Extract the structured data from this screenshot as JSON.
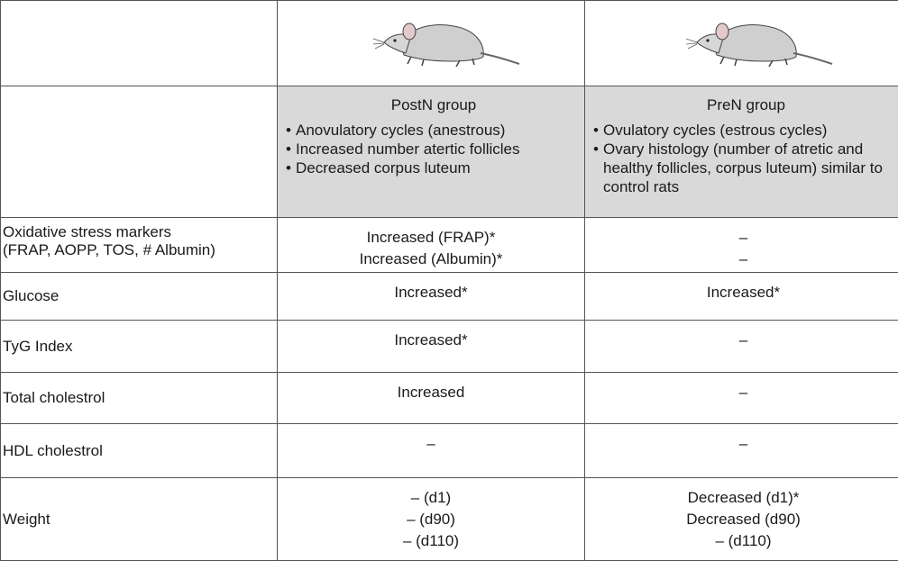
{
  "table": {
    "groups": [
      {
        "name": "PostN group",
        "features": [
          "Anovulatory cycles (anestrous)",
          "Increased number atertic follicles",
          "Decreased corpus luteum"
        ]
      },
      {
        "name": "PreN group",
        "features": [
          "Ovulatory cycles (estrous cycles)",
          "Ovary histology (number of atretic and healthy follicles, corpus luteum) similar to control rats"
        ]
      }
    ],
    "rows": [
      {
        "label": [
          "Oxidative stress markers",
          "(FRAP, AOPP, TOS, # Albumin)"
        ],
        "cells": [
          [
            "Increased (FRAP)*",
            "Increased (Albumin)*"
          ],
          [
            "–",
            "–"
          ]
        ]
      },
      {
        "label": [
          "Glucose"
        ],
        "cells": [
          [
            "Increased*"
          ],
          [
            "Increased*"
          ]
        ]
      },
      {
        "label": [
          "TyG Index"
        ],
        "cells": [
          [
            "Increased*"
          ],
          [
            "–"
          ]
        ]
      },
      {
        "label": [
          "Total cholestrol"
        ],
        "cells": [
          [
            "Increased"
          ],
          [
            "–"
          ]
        ]
      },
      {
        "label": [
          "HDL cholestrol"
        ],
        "cells": [
          [
            "–"
          ],
          [
            "–"
          ]
        ]
      },
      {
        "label": [
          "Weight"
        ],
        "cells": [
          [
            "– (d1)",
            "– (d90)",
            "– (d110)"
          ],
          [
            "Decreased (d1)*",
            "Decreased (d90)",
            "– (d110)"
          ]
        ]
      }
    ]
  }
}
